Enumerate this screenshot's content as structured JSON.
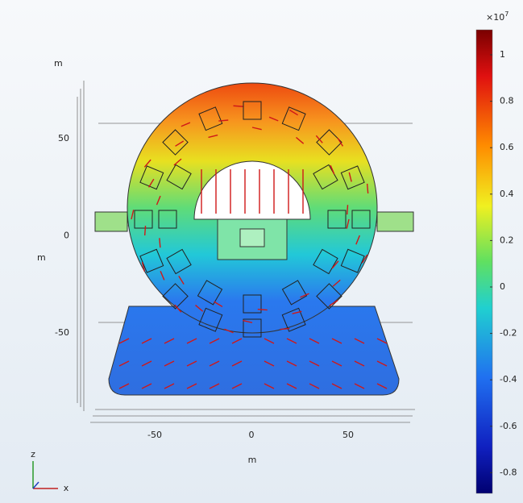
{
  "vertical_axis": {
    "unit_top": "m",
    "ticks": [
      "50",
      "0",
      "-50"
    ],
    "unit_side": "m"
  },
  "horizontal_axis": {
    "ticks": [
      "-50",
      "0",
      "50"
    ],
    "unit": "m"
  },
  "triad": {
    "z": "z",
    "x": "x"
  },
  "colorbar": {
    "multiplier": "×10",
    "exponent": "7",
    "ticks": [
      "1",
      "0.8",
      "0.6",
      "0.4",
      "0.2",
      "0",
      "-0.2",
      "-0.4",
      "-0.6",
      "-0.8"
    ]
  }
}
